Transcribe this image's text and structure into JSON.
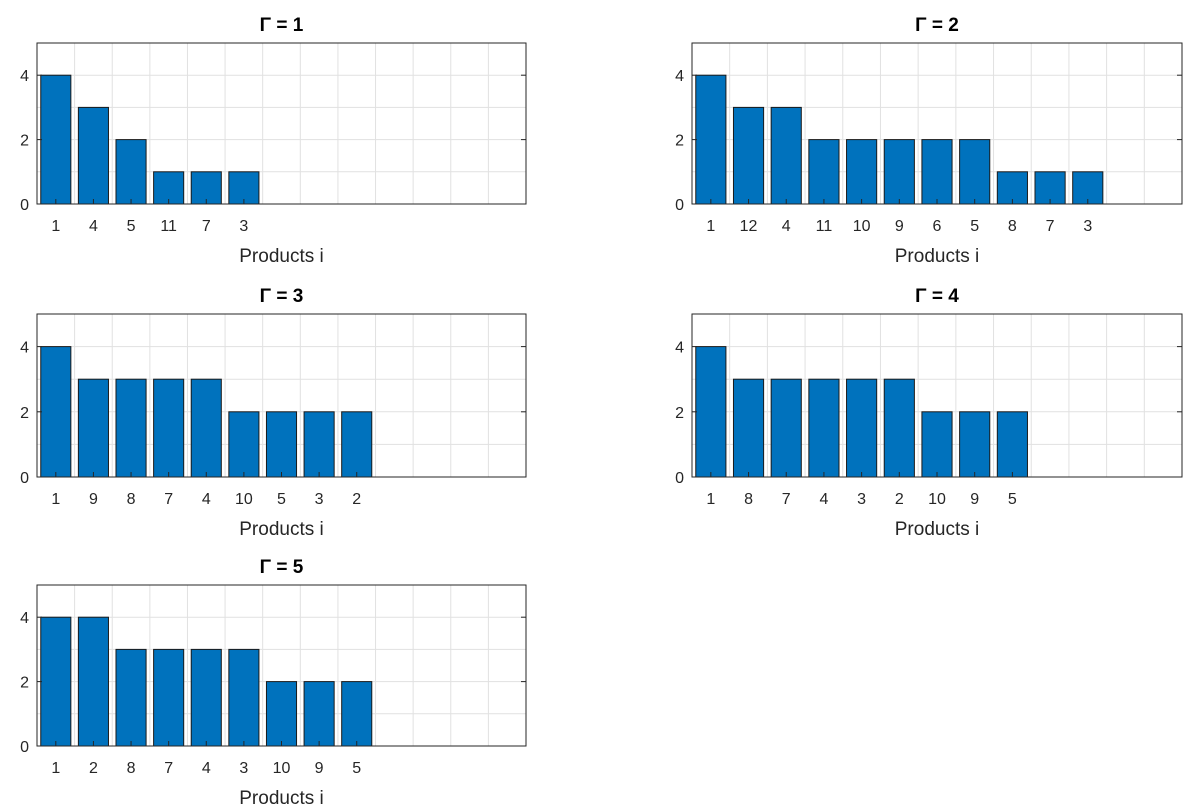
{
  "colors": {
    "bar": "#0072bd",
    "bar_edge": "#1a1a1a",
    "grid": "#e1e1e1",
    "axes": "#262626"
  },
  "chart_data": [
    {
      "type": "bar",
      "title": "Γ = 1",
      "xlabel": "Products i",
      "ylabel": "",
      "categories": [
        "1",
        "4",
        "5",
        "11",
        "7",
        "3"
      ],
      "values": [
        4,
        3,
        2,
        1,
        1,
        1
      ],
      "ylim": [
        0,
        5
      ],
      "yticks": [
        0,
        2,
        4
      ],
      "grid": true
    },
    {
      "type": "bar",
      "title": "Γ = 2",
      "xlabel": "Products i",
      "ylabel": "",
      "categories": [
        "1",
        "12",
        "4",
        "11",
        "10",
        "9",
        "6",
        "5",
        "8",
        "7",
        "3"
      ],
      "values": [
        4,
        3,
        3,
        2,
        2,
        2,
        2,
        2,
        1,
        1,
        1
      ],
      "ylim": [
        0,
        5
      ],
      "yticks": [
        0,
        2,
        4
      ],
      "grid": true
    },
    {
      "type": "bar",
      "title": "Γ = 3",
      "xlabel": "Products i",
      "ylabel": "",
      "categories": [
        "1",
        "9",
        "8",
        "7",
        "4",
        "10",
        "5",
        "3",
        "2"
      ],
      "values": [
        4,
        3,
        3,
        3,
        3,
        2,
        2,
        2,
        2
      ],
      "ylim": [
        0,
        5
      ],
      "yticks": [
        0,
        2,
        4
      ],
      "grid": true
    },
    {
      "type": "bar",
      "title": "Γ = 4",
      "xlabel": "Products i",
      "ylabel": "",
      "categories": [
        "1",
        "8",
        "7",
        "4",
        "3",
        "2",
        "10",
        "9",
        "5"
      ],
      "values": [
        4,
        3,
        3,
        3,
        3,
        3,
        2,
        2,
        2
      ],
      "ylim": [
        0,
        5
      ],
      "yticks": [
        0,
        2,
        4
      ],
      "grid": true
    },
    {
      "type": "bar",
      "title": "Γ = 5",
      "xlabel": "Products i",
      "ylabel": "",
      "categories": [
        "1",
        "2",
        "8",
        "7",
        "4",
        "3",
        "10",
        "9",
        "5"
      ],
      "values": [
        4,
        4,
        3,
        3,
        3,
        3,
        2,
        2,
        2
      ],
      "ylim": [
        0,
        5
      ],
      "yticks": [
        0,
        2,
        4
      ],
      "grid": true
    }
  ]
}
